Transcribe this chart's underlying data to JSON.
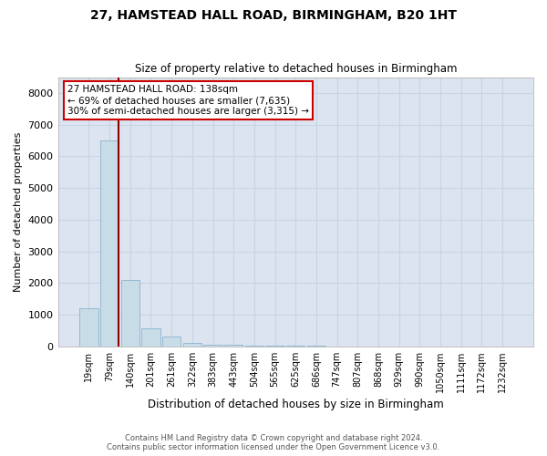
{
  "title_line1": "27, HAMSTEAD HALL ROAD, BIRMINGHAM, B20 1HT",
  "title_line2": "Size of property relative to detached houses in Birmingham",
  "xlabel": "Distribution of detached houses by size in Birmingham",
  "ylabel": "Number of detached properties",
  "footnote1": "Contains HM Land Registry data © Crown copyright and database right 2024.",
  "footnote2": "Contains public sector information licensed under the Open Government Licence v3.0.",
  "annotation_line1": "27 HAMSTEAD HALL ROAD: 138sqm",
  "annotation_line2": "← 69% of detached houses are smaller (7,635)",
  "annotation_line3": "30% of semi-detached houses are larger (3,315) →",
  "vline_color": "#8b0000",
  "annotation_box_color": "#ffffff",
  "annotation_box_edge": "#cc0000",
  "bar_color": "#c8dce8",
  "bar_edge_color": "#7baac8",
  "grid_color": "#c8d4e4",
  "background_color": "#dce4f0",
  "categories": [
    "19sqm",
    "79sqm",
    "140sqm",
    "201sqm",
    "261sqm",
    "322sqm",
    "383sqm",
    "443sqm",
    "504sqm",
    "565sqm",
    "625sqm",
    "686sqm",
    "747sqm",
    "807sqm",
    "868sqm",
    "929sqm",
    "990sqm",
    "1050sqm",
    "1111sqm",
    "1172sqm",
    "1232sqm"
  ],
  "values": [
    1200,
    6500,
    2100,
    580,
    300,
    120,
    60,
    35,
    20,
    12,
    8,
    6,
    5,
    4,
    3,
    3,
    2,
    2,
    1,
    1,
    1
  ],
  "ylim": [
    0,
    8500
  ],
  "yticks": [
    0,
    1000,
    2000,
    3000,
    4000,
    5000,
    6000,
    7000,
    8000
  ]
}
